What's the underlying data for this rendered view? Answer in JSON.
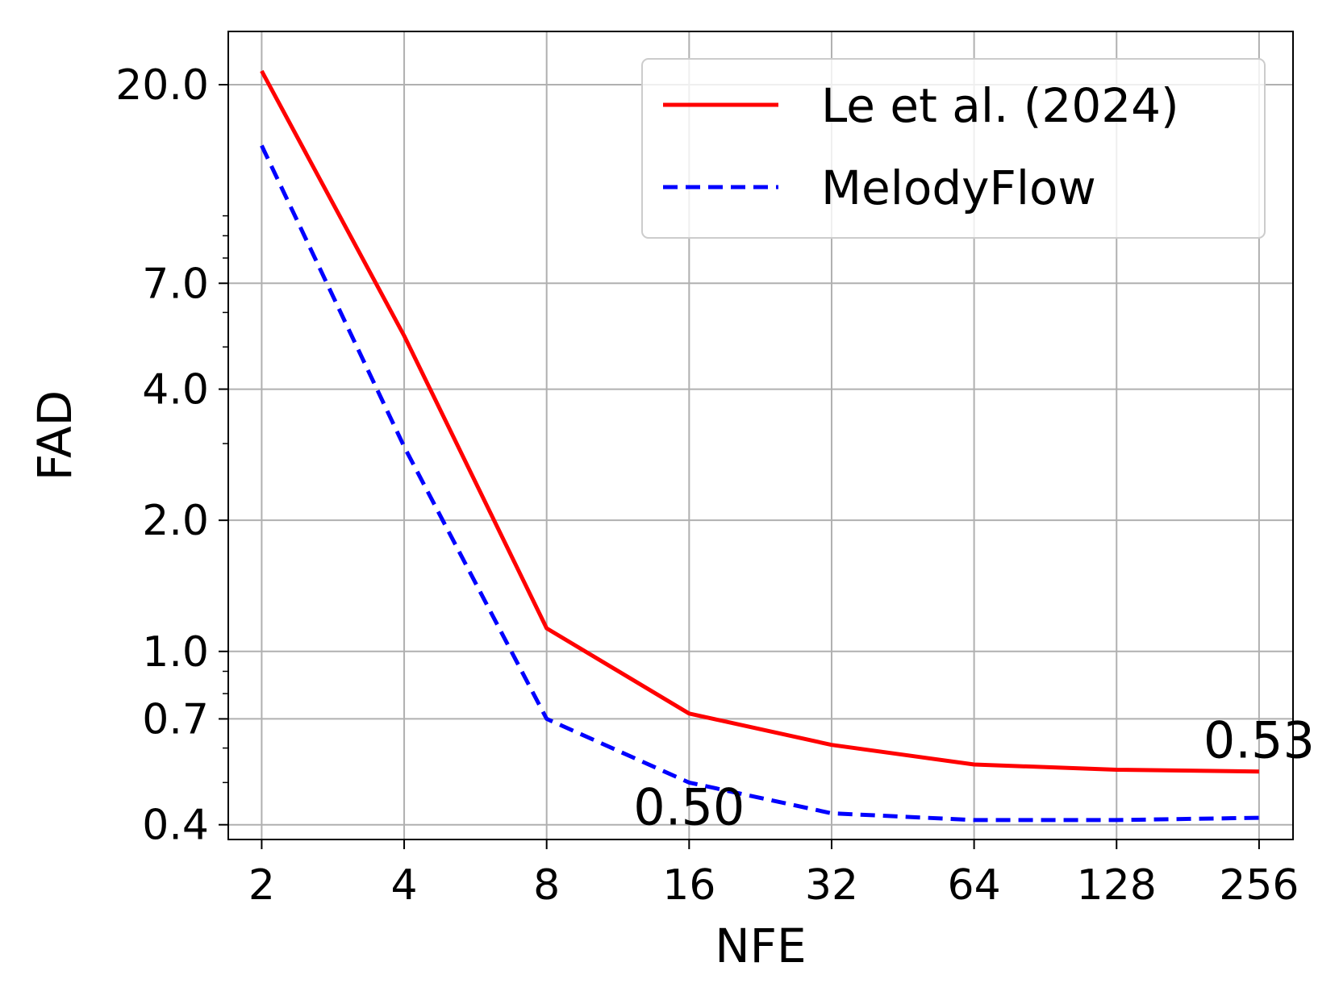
{
  "chart_data": {
    "type": "line",
    "xlabel": "NFE",
    "ylabel": "FAD",
    "x_scale": "log2",
    "y_scale": "log",
    "x": [
      2,
      4,
      8,
      16,
      32,
      64,
      128,
      256
    ],
    "x_tick_labels": [
      "2",
      "4",
      "8",
      "16",
      "32",
      "64",
      "128",
      "256"
    ],
    "xlim": [
      1.7,
      302
    ],
    "y_ticks": [
      0.4,
      0.7,
      1.0,
      2.0,
      4.0,
      7.0,
      20.0
    ],
    "y_tick_labels": [
      "0.4",
      "0.7",
      "1.0",
      "2.0",
      "4.0",
      "7.0",
      "20.0"
    ],
    "y_minor_ticks": [
      0.5,
      0.6,
      0.8,
      0.9,
      3.0,
      5.0,
      6.0,
      8.0,
      9.0,
      10.0
    ],
    "ylim": [
      0.37,
      26.5
    ],
    "grid": true,
    "legend_position": "top-right",
    "series": [
      {
        "name": "Le et al. (2024)",
        "values": [
          21.5,
          5.3,
          1.13,
          0.72,
          0.61,
          0.55,
          0.535,
          0.53
        ],
        "color": "#ff0000",
        "line_style": "solid"
      },
      {
        "name": "MelodyFlow",
        "values": [
          14.5,
          2.95,
          0.7,
          0.5,
          0.425,
          0.41,
          0.41,
          0.415
        ],
        "color": "#0000ff",
        "line_style": "dashed"
      }
    ],
    "annotations": [
      {
        "text": "0.50",
        "x": 16,
        "y": 0.4
      },
      {
        "text": "0.53",
        "x": 256,
        "y": 0.57
      }
    ]
  }
}
